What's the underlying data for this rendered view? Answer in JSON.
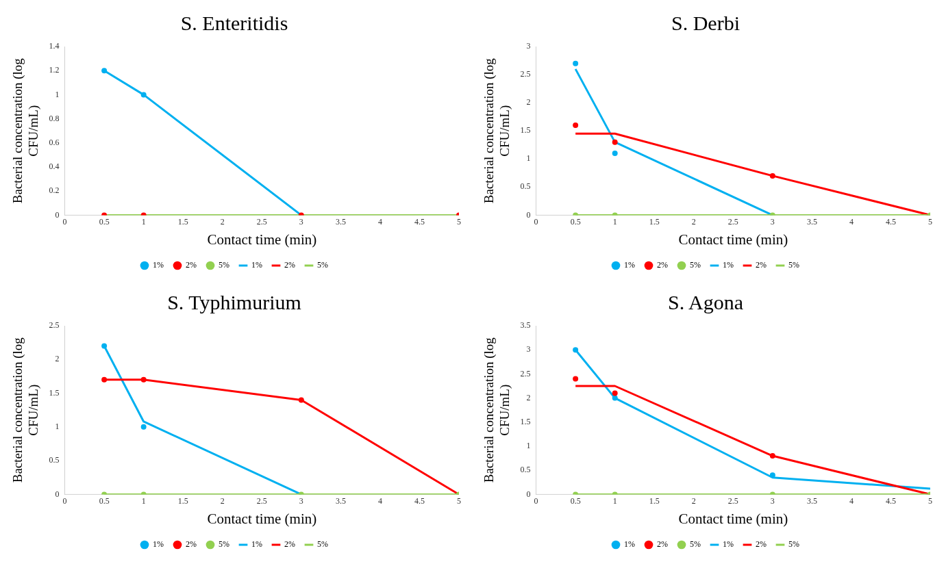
{
  "chart_data": [
    {
      "type": "line",
      "title": "S. Enteritidis",
      "xlabel": "Contact time (min)",
      "ylabel": "Bacterial concentration (log CFU/mL)",
      "x": [
        0.5,
        1,
        3,
        5
      ],
      "xlim": [
        0,
        5
      ],
      "xticks": [
        0,
        0.5,
        1,
        1.5,
        2,
        2.5,
        3,
        3.5,
        4,
        4.5,
        5
      ],
      "ylim": [
        0,
        1.4
      ],
      "yticks": [
        0,
        0.2,
        0.4,
        0.6,
        0.8,
        1,
        1.2,
        1.4
      ],
      "grid": false,
      "legend": "bottom",
      "series": [
        {
          "name": "1%",
          "type": "scatter",
          "marker": "circle",
          "color": "#00b0f0",
          "values": [
            1.2,
            1,
            null,
            null
          ]
        },
        {
          "name": "2%",
          "type": "scatter",
          "marker": "circle",
          "color": "#ff0000",
          "values": [
            0,
            0,
            0,
            0
          ]
        },
        {
          "name": "5%",
          "type": "scatter",
          "marker": "circle",
          "color": "#92d050",
          "values": [
            null,
            null,
            null,
            null
          ]
        },
        {
          "name": "1%",
          "type": "line",
          "marker": "none",
          "color": "#00b0f0",
          "values": [
            1.2,
            1,
            0,
            null
          ]
        },
        {
          "name": "2%",
          "type": "line",
          "marker": "none",
          "color": "#ff0000",
          "values": [
            null,
            null,
            null,
            null
          ]
        },
        {
          "name": "5%",
          "type": "line",
          "marker": "none",
          "color": "#92d050",
          "values": [
            0,
            0,
            0,
            0
          ]
        }
      ]
    },
    {
      "type": "line",
      "title": "S. Derbi",
      "xlabel": "Contact time (min)",
      "ylabel": "Bacterial concentration (log CFU/mL)",
      "x": [
        0.5,
        1,
        3,
        5
      ],
      "xlim": [
        0,
        5
      ],
      "xticks": [
        0,
        0.5,
        1,
        1.5,
        2,
        2.5,
        3,
        3.5,
        4,
        4.5,
        5
      ],
      "ylim": [
        0,
        3
      ],
      "yticks": [
        0,
        0.5,
        1,
        1.5,
        2,
        2.5,
        3
      ],
      "grid": false,
      "legend": "bottom",
      "series": [
        {
          "name": "1%",
          "type": "scatter",
          "marker": "circle",
          "color": "#00b0f0",
          "values": [
            2.7,
            1.1,
            null,
            null
          ]
        },
        {
          "name": "2%",
          "type": "scatter",
          "marker": "circle",
          "color": "#ff0000",
          "values": [
            1.6,
            1.3,
            0.7,
            null
          ]
        },
        {
          "name": "5%",
          "type": "scatter",
          "marker": "circle",
          "color": "#92d050",
          "values": [
            0,
            0,
            0,
            0
          ]
        },
        {
          "name": "1%",
          "type": "line",
          "marker": "none",
          "color": "#00b0f0",
          "values": [
            2.6,
            1.3,
            0,
            null
          ]
        },
        {
          "name": "2%",
          "type": "line",
          "marker": "none",
          "color": "#ff0000",
          "values": [
            1.45,
            1.45,
            0.7,
            0
          ]
        },
        {
          "name": "5%",
          "type": "line",
          "marker": "none",
          "color": "#92d050",
          "values": [
            0,
            0,
            0,
            0
          ]
        }
      ]
    },
    {
      "type": "line",
      "title": "S. Typhimurium",
      "xlabel": "Contact time (min)",
      "ylabel": "Bacterial concentration (log CFU/mL)",
      "x": [
        0.5,
        1,
        3,
        5
      ],
      "xlim": [
        0,
        5
      ],
      "xticks": [
        0,
        0.5,
        1,
        1.5,
        2,
        2.5,
        3,
        3.5,
        4,
        4.5,
        5
      ],
      "ylim": [
        0,
        2.5
      ],
      "yticks": [
        0,
        0.5,
        1,
        1.5,
        2,
        2.5
      ],
      "grid": false,
      "legend": "bottom",
      "series": [
        {
          "name": "1%",
          "type": "scatter",
          "marker": "circle",
          "color": "#00b0f0",
          "values": [
            2.2,
            1,
            null,
            null
          ]
        },
        {
          "name": "2%",
          "type": "scatter",
          "marker": "circle",
          "color": "#ff0000",
          "values": [
            1.7,
            1.7,
            1.4,
            null
          ]
        },
        {
          "name": "5%",
          "type": "scatter",
          "marker": "circle",
          "color": "#92d050",
          "values": [
            0,
            0,
            0,
            0
          ]
        },
        {
          "name": "1%",
          "type": "line",
          "marker": "none",
          "color": "#00b0f0",
          "values": [
            2.2,
            1.08,
            0,
            null
          ]
        },
        {
          "name": "2%",
          "type": "line",
          "marker": "none",
          "color": "#ff0000",
          "values": [
            1.7,
            1.7,
            1.4,
            0
          ]
        },
        {
          "name": "5%",
          "type": "line",
          "marker": "none",
          "color": "#92d050",
          "values": [
            0,
            0,
            0,
            0
          ]
        }
      ]
    },
    {
      "type": "line",
      "title": "S. Agona",
      "xlabel": "Contact time (min)",
      "ylabel": "Bacterial concentration (log CFU/mL)",
      "x": [
        0.5,
        1,
        3,
        5
      ],
      "xlim": [
        0,
        5
      ],
      "xticks": [
        0,
        0.5,
        1,
        1.5,
        2,
        2.5,
        3,
        3.5,
        4,
        4.5,
        5
      ],
      "ylim": [
        0,
        3.5
      ],
      "yticks": [
        0,
        0.5,
        1,
        1.5,
        2,
        2.5,
        3,
        3.5
      ],
      "grid": false,
      "legend": "bottom",
      "series": [
        {
          "name": "1%",
          "type": "scatter",
          "marker": "circle",
          "color": "#00b0f0",
          "values": [
            3,
            2,
            0.4,
            null
          ]
        },
        {
          "name": "2%",
          "type": "scatter",
          "marker": "circle",
          "color": "#ff0000",
          "values": [
            2.4,
            2.1,
            0.8,
            null
          ]
        },
        {
          "name": "5%",
          "type": "scatter",
          "marker": "circle",
          "color": "#92d050",
          "values": [
            0,
            0,
            0,
            0
          ]
        },
        {
          "name": "1%",
          "type": "line",
          "marker": "none",
          "color": "#00b0f0",
          "values": [
            3,
            2,
            0.35,
            0.12
          ]
        },
        {
          "name": "2%",
          "type": "line",
          "marker": "none",
          "color": "#ff0000",
          "values": [
            2.25,
            2.25,
            0.8,
            0
          ]
        },
        {
          "name": "5%",
          "type": "line",
          "marker": "none",
          "color": "#92d050",
          "values": [
            0,
            0,
            0,
            0
          ]
        }
      ]
    }
  ]
}
